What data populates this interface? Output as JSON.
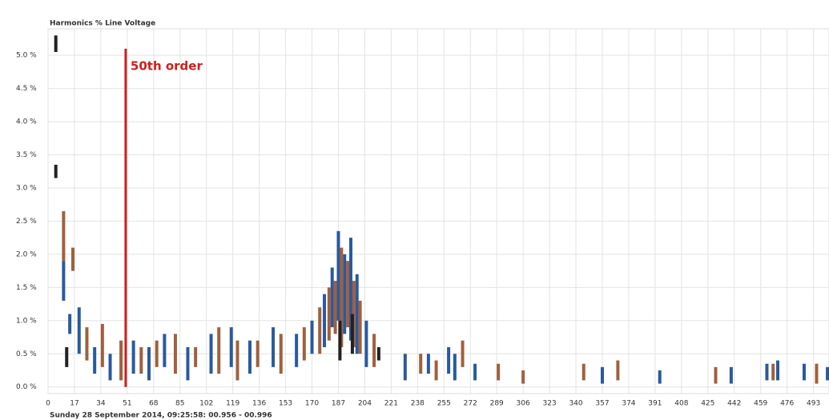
{
  "chart_data": {
    "type": "range",
    "title": "Harmonics % Line Voltage",
    "footer": "Sunday 28 September 2014, 09:25:58: 00.956 - 00.996",
    "annotation": {
      "text": "50th order",
      "x": 50,
      "y": 5.1,
      "color": "#cc1f1f"
    },
    "xlim": [
      0,
      503
    ],
    "ylim": [
      -0.1,
      5.4
    ],
    "xticks": [
      0,
      17,
      34,
      51,
      68,
      85,
      102,
      119,
      136,
      153,
      170,
      187,
      204,
      221,
      238,
      255,
      272,
      289,
      306,
      323,
      340,
      357,
      374,
      391,
      408,
      425,
      442,
      459,
      476,
      493
    ],
    "yticks": [
      {
        "value": 0,
        "label": "0.0 %"
      },
      {
        "value": 0.5,
        "label": "0.5 %"
      },
      {
        "value": 1,
        "label": "1.0 %"
      },
      {
        "value": 1.5,
        "label": "1.5 %"
      },
      {
        "value": 2,
        "label": "2.0 %"
      },
      {
        "value": 2.5,
        "label": "2.5 %"
      },
      {
        "value": 3,
        "label": "3.0 %"
      },
      {
        "value": 3.5,
        "label": "3.5 %"
      },
      {
        "value": 4,
        "label": "4.0 %"
      },
      {
        "value": 4.5,
        "label": "4.5 %"
      },
      {
        "value": 5,
        "label": "5.0 %"
      }
    ],
    "grid": true,
    "series": [
      {
        "color": "#2a5a9e",
        "x": [
          10,
          14,
          20,
          30,
          40,
          55,
          65,
          75,
          90,
          105,
          118,
          130,
          145,
          160,
          170,
          178,
          183,
          187,
          191,
          195,
          199,
          205,
          230,
          245,
          258,
          262,
          275,
          357,
          394,
          440,
          463,
          470,
          487,
          502
        ],
        "low": [
          1.3,
          0.8,
          0.5,
          0.2,
          0.1,
          0.2,
          0.1,
          0.3,
          0.1,
          0.2,
          0.3,
          0.2,
          0.3,
          0.3,
          0.5,
          0.6,
          0.9,
          1.0,
          0.8,
          0.7,
          0.5,
          0.3,
          0.1,
          0.2,
          0.2,
          0.1,
          0.1,
          0.05,
          0.05,
          0.05,
          0.1,
          0.1,
          0.1,
          0.1
        ],
        "high": [
          1.9,
          1.1,
          1.2,
          0.6,
          0.5,
          0.7,
          0.6,
          0.8,
          0.6,
          0.8,
          0.9,
          0.7,
          0.9,
          0.8,
          1.0,
          1.4,
          1.8,
          2.35,
          2.0,
          2.25,
          1.7,
          1.0,
          0.5,
          0.5,
          0.6,
          0.5,
          0.35,
          0.3,
          0.25,
          0.3,
          0.35,
          0.4,
          0.35,
          0.3
        ]
      },
      {
        "color": "#a0603e",
        "x": [
          10,
          16,
          25,
          35,
          47,
          60,
          70,
          82,
          95,
          110,
          122,
          135,
          150,
          165,
          175,
          181,
          185,
          189,
          193,
          197,
          201,
          210,
          240,
          250,
          267,
          290,
          306,
          345,
          367,
          430,
          467,
          495
        ],
        "low": [
          1.9,
          1.75,
          0.4,
          0.3,
          0.1,
          0.2,
          0.3,
          0.2,
          0.3,
          0.2,
          0.1,
          0.3,
          0.2,
          0.4,
          0.5,
          0.7,
          0.8,
          0.6,
          0.9,
          0.6,
          0.5,
          0.3,
          0.2,
          0.1,
          0.3,
          0.1,
          0.05,
          0.1,
          0.1,
          0.05,
          0.1,
          0.05
        ],
        "high": [
          2.65,
          2.1,
          0.9,
          0.95,
          0.7,
          0.6,
          0.7,
          0.8,
          0.6,
          0.9,
          0.7,
          0.7,
          0.8,
          0.9,
          1.2,
          1.5,
          1.6,
          2.1,
          1.9,
          1.6,
          1.3,
          0.8,
          0.5,
          0.4,
          0.7,
          0.35,
          0.25,
          0.35,
          0.4,
          0.3,
          0.35,
          0.35
        ]
      },
      {
        "color": "#222222",
        "x": [
          5,
          5,
          12,
          188,
          196,
          213
        ],
        "low": [
          5.05,
          3.15,
          0.3,
          0.4,
          0.5,
          0.4
        ],
        "high": [
          5.3,
          3.35,
          0.6,
          1.0,
          1.1,
          0.6
        ]
      }
    ]
  }
}
